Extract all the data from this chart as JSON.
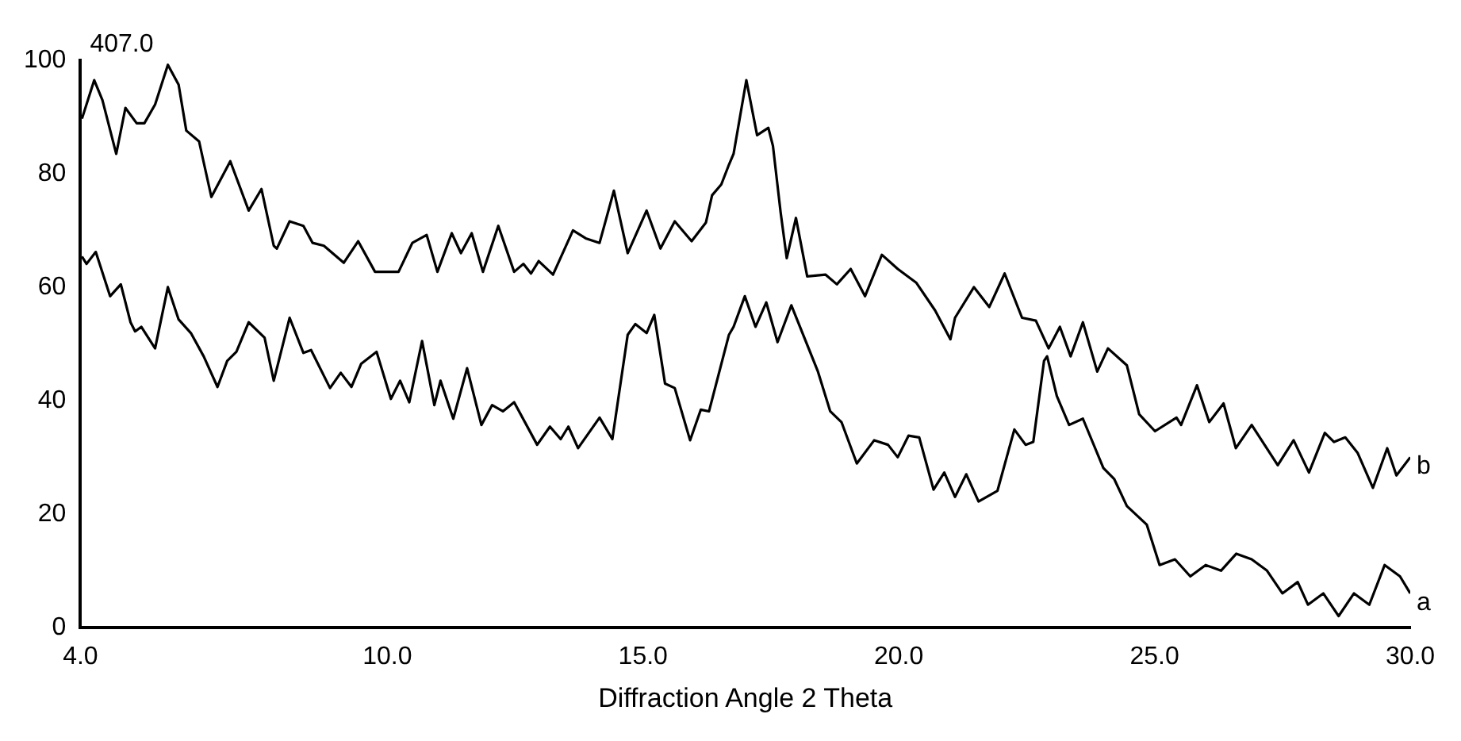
{
  "chart_data": {
    "type": "line",
    "xlabel": "Diffraction Angle 2 Theta",
    "annotations": [
      "407.0"
    ],
    "xlim": [
      4,
      30
    ],
    "xticks": [
      {
        "value": 4,
        "label": "4.0"
      },
      {
        "value": 10,
        "label": "10.0"
      },
      {
        "value": 15,
        "label": "15.0"
      },
      {
        "value": 20,
        "label": "20.0"
      },
      {
        "value": 25,
        "label": "25.0"
      },
      {
        "value": 30,
        "label": "30.0"
      }
    ],
    "ylim": [
      0,
      100
    ],
    "yticks": [
      0,
      20,
      40,
      60,
      80,
      100
    ],
    "series": [
      {
        "name": "b",
        "color": "#000000",
        "x": [
          4.03,
          4.27,
          4.43,
          4.7,
          4.88,
          5.1,
          5.25,
          5.46,
          5.71,
          5.92,
          6.07,
          6.32,
          6.56,
          6.93,
          7.29,
          7.54,
          7.78,
          7.84,
          8.09,
          8.36,
          8.54,
          8.76,
          9.15,
          9.43,
          9.76,
          10.22,
          10.49,
          10.77,
          10.98,
          11.26,
          11.44,
          11.65,
          11.87,
          12.17,
          12.48,
          12.66,
          12.81,
          12.96,
          13.24,
          13.63,
          13.88,
          14.15,
          14.43,
          14.7,
          15.07,
          15.34,
          15.62,
          15.95,
          16.23,
          16.35,
          16.53,
          16.68,
          16.77,
          17.02,
          17.23,
          17.45,
          17.54,
          17.69,
          17.81,
          17.99,
          18.21,
          18.57,
          18.79,
          19.06,
          19.34,
          19.67,
          19.98,
          20.34,
          20.71,
          21.01,
          21.1,
          21.47,
          21.77,
          22.07,
          22.41,
          22.68,
          22.93,
          23.15,
          23.36,
          23.6,
          23.88,
          24.09,
          24.46,
          24.7,
          25.01,
          25.43,
          25.52,
          25.83,
          26.07,
          26.35,
          26.59,
          26.9,
          27.41,
          27.72,
          28.02,
          28.33,
          28.51,
          28.73,
          28.97,
          29.27,
          29.55,
          29.73,
          30
        ],
        "values": [
          89.7,
          96.5,
          93,
          83.5,
          91.6,
          88.9,
          88.9,
          92.2,
          99.2,
          95.7,
          87.6,
          85.7,
          75.9,
          82.2,
          73.5,
          77.3,
          67.3,
          66.8,
          71.6,
          70.8,
          67.8,
          67.3,
          64.3,
          68.1,
          62.7,
          62.7,
          67.8,
          69.2,
          62.7,
          69.5,
          66,
          69.5,
          62.7,
          70.8,
          62.7,
          64.1,
          62.4,
          64.6,
          62.2,
          70,
          68.6,
          67.8,
          77,
          66,
          73.5,
          66.8,
          71.6,
          68.1,
          71.4,
          76.2,
          78.1,
          81.6,
          83.5,
          96.5,
          86.8,
          88.1,
          84.9,
          73.2,
          65.1,
          72.2,
          61.9,
          62.2,
          60.5,
          63.2,
          58.4,
          65.7,
          63.2,
          60.8,
          55.9,
          50.8,
          54.6,
          60,
          56.5,
          62.4,
          54.6,
          54.1,
          49.2,
          53,
          47.8,
          53.8,
          45.1,
          49.2,
          46.2,
          37.6,
          34.6,
          37,
          35.7,
          42.7,
          36.2,
          39.5,
          31.6,
          35.7,
          28.6,
          33,
          27.3,
          34.3,
          32.7,
          33.5,
          30.8,
          24.6,
          31.6,
          26.8,
          30
        ]
      },
      {
        "name": "a",
        "color": "#000000",
        "x": [
          4.03,
          4.12,
          4.3,
          4.58,
          4.79,
          4.98,
          5.07,
          5.19,
          5.46,
          5.71,
          5.92,
          6.16,
          6.41,
          6.68,
          6.87,
          7.05,
          7.29,
          7.6,
          7.78,
          8.09,
          8.36,
          8.51,
          8.88,
          9.09,
          9.3,
          9.49,
          9.79,
          10.07,
          10.25,
          10.43,
          10.68,
          10.92,
          11.04,
          11.29,
          11.56,
          11.84,
          12.05,
          12.26,
          12.48,
          12.93,
          13.18,
          13.39,
          13.54,
          13.73,
          14.15,
          14.4,
          14.7,
          14.85,
          15.07,
          15.22,
          15.43,
          15.62,
          15.92,
          16.13,
          16.29,
          16.68,
          16.77,
          16.99,
          17.2,
          17.41,
          17.63,
          17.9,
          18.42,
          18.66,
          18.88,
          19.18,
          19.52,
          19.79,
          19.98,
          20.19,
          20.4,
          20.68,
          20.89,
          21.1,
          21.32,
          21.56,
          21.93,
          22.26,
          22.48,
          22.63,
          22.84,
          22.9,
          23.09,
          23.33,
          23.6,
          24,
          24.21,
          24.46,
          24.85,
          25.1,
          25.4,
          25.7,
          26,
          26.3,
          26.6,
          26.9,
          27.2,
          27.5,
          27.8,
          28,
          28.3,
          28.6,
          28.9,
          29.2,
          29.5,
          29.8,
          30
        ],
        "values": [
          65.4,
          64.1,
          66.2,
          58.4,
          60.5,
          53.8,
          52.2,
          53,
          49.2,
          60,
          54.3,
          51.9,
          47.8,
          42.4,
          47,
          48.6,
          53.8,
          51.1,
          43.5,
          54.6,
          48.4,
          48.9,
          42.2,
          44.9,
          42.4,
          46.5,
          48.6,
          40.3,
          43.5,
          39.7,
          50.5,
          39.2,
          43.5,
          36.8,
          45.7,
          35.7,
          39.2,
          38.1,
          39.7,
          32.2,
          35.4,
          33.2,
          35.4,
          31.6,
          37,
          33.2,
          51.6,
          53.5,
          51.9,
          55.1,
          43,
          42.2,
          33,
          38.4,
          38.1,
          51.6,
          53,
          58.4,
          53,
          57.3,
          50.3,
          56.8,
          45.1,
          38.1,
          36.2,
          28.9,
          33,
          32.2,
          30,
          33.8,
          33.5,
          24.3,
          27.3,
          23,
          27,
          22.2,
          24.1,
          34.9,
          32.2,
          32.7,
          47,
          47.8,
          40.8,
          35.7,
          36.8,
          28.1,
          26.2,
          21.4,
          18.1,
          11,
          12,
          9,
          11,
          10,
          13,
          12,
          10,
          6,
          8,
          4,
          6,
          2,
          6,
          4,
          11,
          9,
          6
        ]
      }
    ]
  }
}
